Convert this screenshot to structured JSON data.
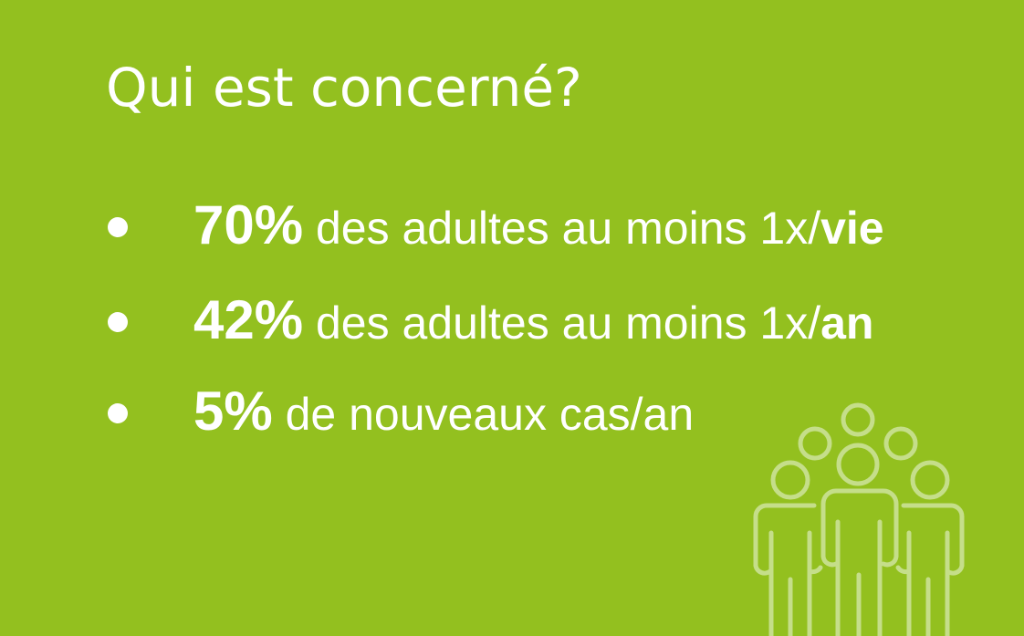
{
  "title": "Qui est concerné?",
  "items": [
    {
      "bold": "70%",
      "text": " des adultes au moins 1x/",
      "suffix": "vie"
    },
    {
      "bold": "42%",
      "text": " des adultes au moins 1x/",
      "suffix": "an"
    },
    {
      "bold": "5%",
      "text": " de nouveaux cas/an",
      "suffix": ""
    }
  ],
  "colors": {
    "background": "#93c01f",
    "text": "#ffffff",
    "icon": "#c5de8a"
  },
  "icon": "group-of-people-icon"
}
